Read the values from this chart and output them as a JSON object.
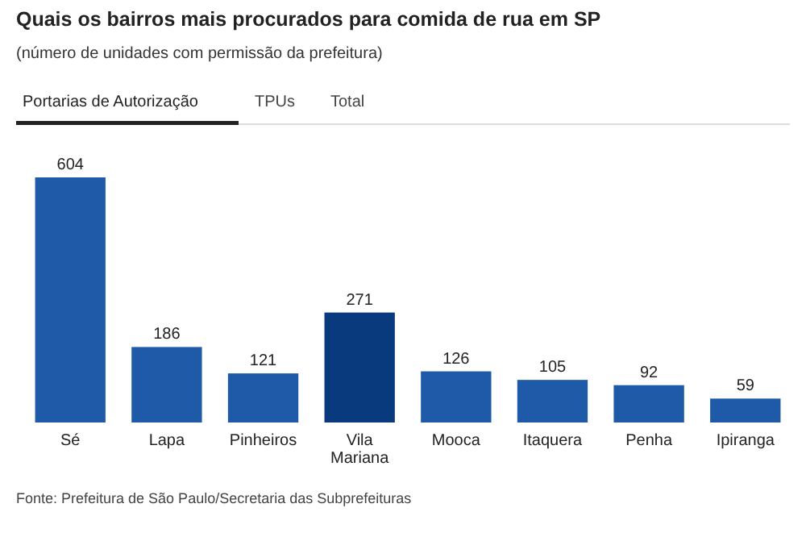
{
  "chart_data": {
    "type": "bar",
    "title": "Quais os bairros mais procurados para comida de rua em SP",
    "subtitle": "(número de unidades com permissão da prefeitura)",
    "categories": [
      "Sé",
      "Lapa",
      "Pinheiros",
      "Vila Mariana",
      "Mooca",
      "Itaquera",
      "Penha",
      "Ipiranga"
    ],
    "values": [
      604,
      186,
      121,
      271,
      126,
      105,
      92,
      59
    ],
    "colors": [
      "#1f5aa8",
      "#1f5aa8",
      "#1f5aa8",
      "#0a3a7e",
      "#1f5aa8",
      "#1f5aa8",
      "#1f5aa8",
      "#1f5aa8"
    ],
    "data_labels": true,
    "annotations": [
      "Portarias de Autorização",
      "TPUs",
      "Total",
      "Fonte: Prefeitura de São Paulo/Secretaria das Subprefeituras"
    ]
  }
}
